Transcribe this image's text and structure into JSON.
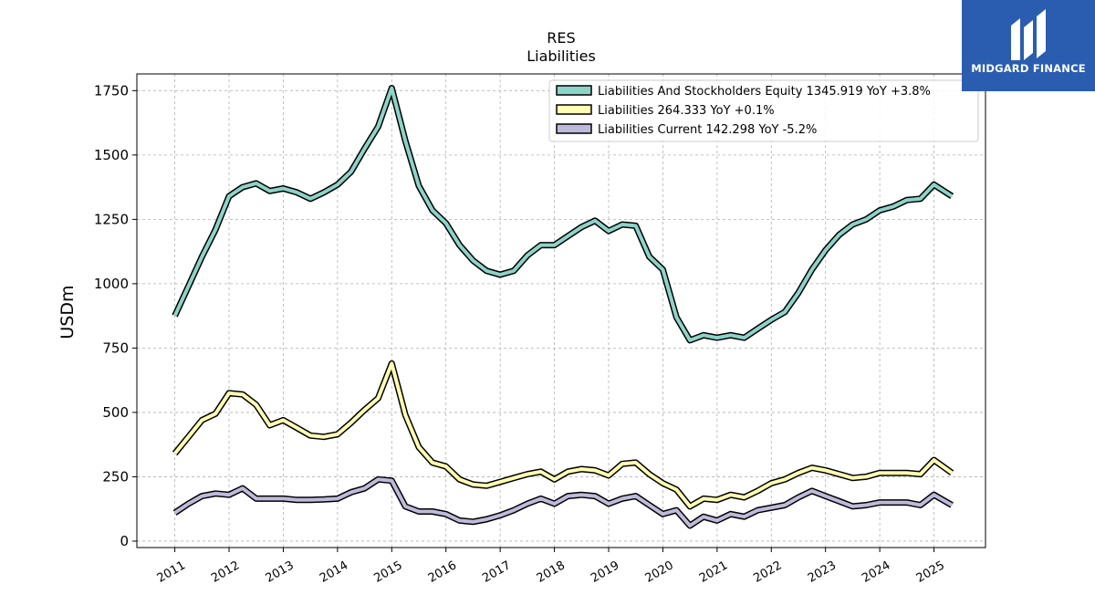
{
  "brand": {
    "name": "MIDGARD FINANCE",
    "bg_color": "#2a5db0",
    "icon": "midgard-logo-icon"
  },
  "chart_data": {
    "type": "line",
    "title": "RES",
    "subtitle": "Liabilities",
    "ylabel": "USDm",
    "xlabel": "",
    "ylim": [
      -25,
      1815
    ],
    "xlim": [
      2010.3,
      2025.95
    ],
    "yticks": [
      0,
      250,
      500,
      750,
      1000,
      1250,
      1500,
      1750
    ],
    "xticks": [
      2011,
      2012,
      2013,
      2014,
      2015,
      2016,
      2017,
      2018,
      2019,
      2020,
      2021,
      2022,
      2023,
      2024,
      2025
    ],
    "grid": true,
    "legend_position": "top-right",
    "series": [
      {
        "name": "Liabilities And Stockholders Equity",
        "legend_label": "Liabilities And Stockholders Equity  1345.919 YoY +3.8%",
        "color": "#8dd3c7",
        "points": [
          [
            2011.0,
            875
          ],
          [
            2011.25,
            990
          ],
          [
            2011.5,
            1105
          ],
          [
            2011.75,
            1210
          ],
          [
            2012.0,
            1340
          ],
          [
            2012.25,
            1375
          ],
          [
            2012.5,
            1390
          ],
          [
            2012.75,
            1360
          ],
          [
            2013.0,
            1370
          ],
          [
            2013.25,
            1355
          ],
          [
            2013.5,
            1330
          ],
          [
            2013.75,
            1355
          ],
          [
            2014.0,
            1385
          ],
          [
            2014.25,
            1435
          ],
          [
            2014.5,
            1525
          ],
          [
            2014.75,
            1610
          ],
          [
            2015.0,
            1760
          ],
          [
            2015.25,
            1555
          ],
          [
            2015.5,
            1380
          ],
          [
            2015.75,
            1285
          ],
          [
            2016.0,
            1235
          ],
          [
            2016.25,
            1150
          ],
          [
            2016.5,
            1090
          ],
          [
            2016.75,
            1050
          ],
          [
            2017.0,
            1035
          ],
          [
            2017.25,
            1050
          ],
          [
            2017.5,
            1110
          ],
          [
            2017.75,
            1150
          ],
          [
            2018.0,
            1150
          ],
          [
            2018.25,
            1185
          ],
          [
            2018.5,
            1220
          ],
          [
            2018.75,
            1245
          ],
          [
            2019.0,
            1205
          ],
          [
            2019.25,
            1230
          ],
          [
            2019.5,
            1225
          ],
          [
            2019.75,
            1105
          ],
          [
            2020.0,
            1055
          ],
          [
            2020.25,
            870
          ],
          [
            2020.5,
            780
          ],
          [
            2020.75,
            800
          ],
          [
            2021.0,
            790
          ],
          [
            2021.25,
            800
          ],
          [
            2021.5,
            790
          ],
          [
            2021.75,
            825
          ],
          [
            2022.0,
            860
          ],
          [
            2022.25,
            890
          ],
          [
            2022.5,
            965
          ],
          [
            2022.75,
            1055
          ],
          [
            2023.0,
            1130
          ],
          [
            2023.25,
            1190
          ],
          [
            2023.5,
            1230
          ],
          [
            2023.75,
            1250
          ],
          [
            2024.0,
            1285
          ],
          [
            2024.25,
            1300
          ],
          [
            2024.5,
            1325
          ],
          [
            2024.75,
            1330
          ],
          [
            2025.0,
            1385
          ],
          [
            2025.33,
            1340
          ]
        ]
      },
      {
        "name": "Liabilities",
        "legend_label": "Liabilities  264.333 YoY +0.1%",
        "color": "#ffffb3",
        "points": [
          [
            2011.0,
            340
          ],
          [
            2011.25,
            405
          ],
          [
            2011.5,
            470
          ],
          [
            2011.75,
            495
          ],
          [
            2012.0,
            575
          ],
          [
            2012.25,
            570
          ],
          [
            2012.5,
            530
          ],
          [
            2012.75,
            450
          ],
          [
            2013.0,
            470
          ],
          [
            2013.25,
            440
          ],
          [
            2013.5,
            410
          ],
          [
            2013.75,
            405
          ],
          [
            2014.0,
            415
          ],
          [
            2014.25,
            460
          ],
          [
            2014.5,
            510
          ],
          [
            2014.75,
            555
          ],
          [
            2015.0,
            690
          ],
          [
            2015.25,
            490
          ],
          [
            2015.5,
            365
          ],
          [
            2015.75,
            305
          ],
          [
            2016.0,
            290
          ],
          [
            2016.25,
            240
          ],
          [
            2016.5,
            220
          ],
          [
            2016.75,
            215
          ],
          [
            2017.0,
            230
          ],
          [
            2017.25,
            245
          ],
          [
            2017.5,
            260
          ],
          [
            2017.75,
            270
          ],
          [
            2018.0,
            240
          ],
          [
            2018.25,
            270
          ],
          [
            2018.5,
            280
          ],
          [
            2018.75,
            275
          ],
          [
            2019.0,
            255
          ],
          [
            2019.25,
            300
          ],
          [
            2019.5,
            305
          ],
          [
            2019.75,
            260
          ],
          [
            2020.0,
            225
          ],
          [
            2020.25,
            200
          ],
          [
            2020.5,
            135
          ],
          [
            2020.75,
            165
          ],
          [
            2021.0,
            160
          ],
          [
            2021.25,
            180
          ],
          [
            2021.5,
            170
          ],
          [
            2021.75,
            195
          ],
          [
            2022.0,
            225
          ],
          [
            2022.25,
            240
          ],
          [
            2022.5,
            265
          ],
          [
            2022.75,
            285
          ],
          [
            2023.0,
            275
          ],
          [
            2023.25,
            260
          ],
          [
            2023.5,
            245
          ],
          [
            2023.75,
            250
          ],
          [
            2024.0,
            265
          ],
          [
            2024.25,
            265
          ],
          [
            2024.5,
            265
          ],
          [
            2024.75,
            260
          ],
          [
            2025.0,
            315
          ],
          [
            2025.33,
            265
          ]
        ]
      },
      {
        "name": "Liabilities Current",
        "legend_label": "Liabilities Current  142.298 YoY -5.2%",
        "color": "#bebada",
        "points": [
          [
            2011.0,
            110
          ],
          [
            2011.25,
            145
          ],
          [
            2011.5,
            175
          ],
          [
            2011.75,
            185
          ],
          [
            2012.0,
            180
          ],
          [
            2012.25,
            205
          ],
          [
            2012.5,
            165
          ],
          [
            2012.75,
            165
          ],
          [
            2013.0,
            165
          ],
          [
            2013.25,
            160
          ],
          [
            2013.5,
            160
          ],
          [
            2013.75,
            162
          ],
          [
            2014.0,
            165
          ],
          [
            2014.25,
            190
          ],
          [
            2014.5,
            205
          ],
          [
            2014.75,
            240
          ],
          [
            2015.0,
            235
          ],
          [
            2015.25,
            135
          ],
          [
            2015.5,
            115
          ],
          [
            2015.75,
            115
          ],
          [
            2016.0,
            105
          ],
          [
            2016.25,
            80
          ],
          [
            2016.5,
            75
          ],
          [
            2016.75,
            85
          ],
          [
            2017.0,
            100
          ],
          [
            2017.25,
            120
          ],
          [
            2017.5,
            145
          ],
          [
            2017.75,
            165
          ],
          [
            2018.0,
            145
          ],
          [
            2018.25,
            175
          ],
          [
            2018.5,
            180
          ],
          [
            2018.75,
            175
          ],
          [
            2019.0,
            145
          ],
          [
            2019.25,
            165
          ],
          [
            2019.5,
            175
          ],
          [
            2019.75,
            140
          ],
          [
            2020.0,
            105
          ],
          [
            2020.25,
            120
          ],
          [
            2020.5,
            60
          ],
          [
            2020.75,
            95
          ],
          [
            2021.0,
            80
          ],
          [
            2021.25,
            105
          ],
          [
            2021.5,
            95
          ],
          [
            2021.75,
            120
          ],
          [
            2022.0,
            130
          ],
          [
            2022.25,
            140
          ],
          [
            2022.5,
            170
          ],
          [
            2022.75,
            195
          ],
          [
            2023.0,
            175
          ],
          [
            2023.25,
            155
          ],
          [
            2023.5,
            135
          ],
          [
            2023.75,
            140
          ],
          [
            2024.0,
            150
          ],
          [
            2024.25,
            150
          ],
          [
            2024.5,
            150
          ],
          [
            2024.75,
            140
          ],
          [
            2025.0,
            180
          ],
          [
            2025.33,
            140
          ]
        ]
      }
    ]
  }
}
